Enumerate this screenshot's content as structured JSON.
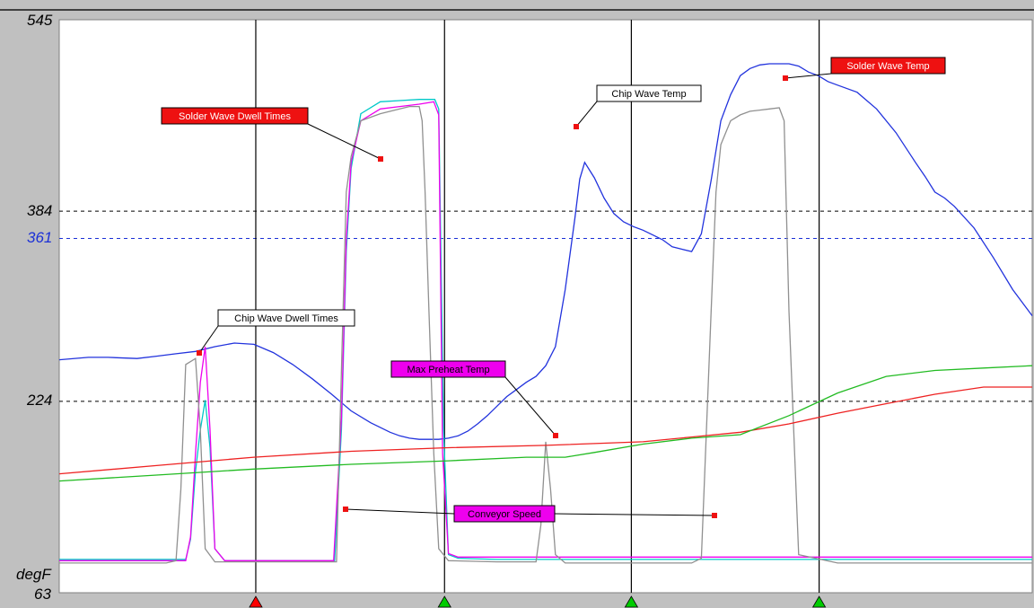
{
  "chart_data": {
    "type": "line",
    "ylabel": "degF",
    "ylim": [
      63,
      545
    ],
    "y_ticks": [
      {
        "value": 545,
        "label": "545",
        "color": "#000000"
      },
      {
        "value": 384,
        "label": "384",
        "color": "#000000"
      },
      {
        "value": 361,
        "label": "361",
        "color": "#1a2fd6"
      },
      {
        "value": 224,
        "label": "224",
        "color": "#000000"
      },
      {
        "value": 63,
        "label": "63",
        "color": "#000000"
      }
    ],
    "reference_lines": [
      {
        "value": 384,
        "color": "#000000",
        "style": "dashed"
      },
      {
        "value": 361,
        "color": "#1a2fd6",
        "style": "dashed"
      },
      {
        "value": 224,
        "color": "#000000",
        "style": "dashed"
      }
    ],
    "xlim": [
      0,
      100
    ],
    "markers": [
      {
        "x": 20.2,
        "color": "#ff0000"
      },
      {
        "x": 39.6,
        "color": "#00cc00"
      },
      {
        "x": 58.8,
        "color": "#00cc00"
      },
      {
        "x": 78.1,
        "color": "#00cc00"
      }
    ],
    "series": [
      {
        "color": "#2233dd",
        "x": [
          0,
          3,
          5,
          8,
          10,
          12,
          14,
          16,
          18,
          20,
          22,
          24,
          26,
          28,
          30,
          32,
          34,
          35,
          36,
          37,
          38,
          39,
          40,
          41,
          42,
          43,
          44,
          45,
          46,
          47,
          48,
          49,
          50,
          51,
          52,
          53,
          53.5,
          54,
          55,
          56,
          57,
          58,
          59,
          60,
          61,
          62,
          63,
          64,
          65,
          66,
          67,
          68,
          69,
          70,
          71,
          72,
          73,
          74,
          75,
          76,
          77,
          78,
          79,
          80,
          82,
          84,
          86,
          88,
          89,
          90,
          91,
          92,
          94,
          96,
          98,
          100
        ],
        "y": [
          259,
          261,
          261,
          260,
          262,
          264,
          266,
          270,
          273,
          272,
          265,
          255,
          243,
          230,
          216,
          206,
          198,
          195,
          193,
          192,
          192,
          192,
          193,
          195,
          199,
          205,
          212,
          220,
          228,
          234,
          240,
          245,
          254,
          270,
          318,
          378,
          411,
          425,
          412,
          395,
          382,
          375,
          371,
          368,
          364,
          360,
          354,
          352,
          350,
          365,
          410,
          460,
          482,
          498,
          504,
          507,
          508,
          508,
          508,
          506,
          501,
          498,
          493,
          490,
          484,
          470,
          450,
          425,
          413,
          400,
          395,
          388,
          370,
          345,
          318,
          296
        ]
      },
      {
        "color": "#00c8c8",
        "x": [
          0,
          13,
          13.5,
          14,
          14.5,
          15,
          15.5,
          16,
          17,
          19,
          20,
          21,
          22,
          25,
          28.3,
          29,
          29.5,
          30,
          31,
          33,
          35,
          37,
          38.6,
          39,
          39.5,
          40,
          41,
          45,
          50,
          55,
          60,
          65,
          70,
          75,
          80,
          85,
          90,
          95,
          100
        ],
        "y": [
          91,
          91,
          108,
          165,
          200,
          225,
          185,
          100,
          90,
          90,
          90,
          90,
          90,
          90,
          90,
          200,
          350,
          420,
          466,
          476,
          477,
          478,
          478,
          470,
          200,
          95,
          92,
          91,
          91,
          91,
          91,
          91,
          91,
          91,
          91,
          91,
          91,
          91,
          91
        ]
      },
      {
        "color": "#ee00ee",
        "x": [
          0,
          13,
          13.5,
          14,
          14.5,
          15,
          15.5,
          16,
          17,
          19,
          25,
          28.2,
          29,
          29.5,
          30,
          31,
          33,
          35,
          37,
          38.5,
          39,
          39.4,
          40,
          41,
          45,
          50,
          55,
          60,
          65,
          70,
          75,
          80,
          85,
          90,
          95,
          100
        ],
        "y": [
          90,
          90,
          110,
          180,
          240,
          270,
          200,
          100,
          90,
          90,
          90,
          90,
          210,
          360,
          425,
          460,
          470,
          472,
          474,
          476,
          465,
          180,
          96,
          93,
          93,
          93,
          93,
          93,
          93,
          93,
          93,
          93,
          93,
          93,
          93,
          93
        ]
      },
      {
        "color": "#909090",
        "x": [
          0,
          11,
          12,
          12.5,
          13,
          14,
          14.5,
          15,
          16,
          20,
          25,
          28.5,
          29,
          29.5,
          30,
          31,
          33,
          35,
          36,
          36.5,
          37,
          37.3,
          37.6,
          38,
          38.5,
          39,
          40,
          45,
          49,
          49.5,
          50,
          50.5,
          51,
          52,
          55,
          60,
          65,
          66,
          67,
          67.5,
          68,
          69,
          70,
          71,
          72,
          73,
          74,
          74.5,
          75,
          76,
          80,
          85,
          90,
          95,
          100
        ],
        "y": [
          88,
          88,
          90,
          150,
          255,
          260,
          200,
          100,
          89,
          89,
          89,
          89,
          250,
          400,
          430,
          460,
          466,
          470,
          472,
          472,
          472,
          460,
          400,
          300,
          180,
          100,
          90,
          89,
          89,
          120,
          190,
          150,
          95,
          88,
          88,
          88,
          88,
          92,
          300,
          400,
          440,
          460,
          465,
          468,
          469,
          470,
          471,
          460,
          300,
          95,
          88,
          88,
          88,
          88,
          88
        ]
      },
      {
        "color": "#ee2222",
        "x": [
          0,
          10,
          20,
          30,
          40,
          50,
          60,
          65,
          70,
          75,
          80,
          85,
          90,
          95,
          100
        ],
        "y": [
          163,
          170,
          177,
          182,
          185,
          187,
          190,
          194,
          198,
          205,
          214,
          222,
          230,
          236,
          236
        ]
      },
      {
        "color": "#22bb22",
        "x": [
          0,
          10,
          20,
          30,
          40,
          48,
          52,
          55,
          60,
          65,
          70,
          75,
          80,
          85,
          90,
          95,
          100
        ],
        "y": [
          157,
          162,
          167,
          171,
          174,
          177,
          177,
          181,
          188,
          193,
          196,
          212,
          231,
          245,
          250,
          252,
          254
        ]
      }
    ],
    "annotations": [
      {
        "text": "Solder Wave Dwell Times",
        "bg": "#ee1111",
        "fg": "#ffffff"
      },
      {
        "text": "Chip Wave Temp",
        "bg": "#ffffff",
        "fg": "#000000"
      },
      {
        "text": "Solder Wave Temp",
        "bg": "#ee1111",
        "fg": "#ffffff"
      },
      {
        "text": "Chip Wave Dwell Times",
        "bg": "#ffffff",
        "fg": "#000000"
      },
      {
        "text": "Max Preheat Temp",
        "bg": "#ee00ee",
        "fg": "#000000"
      },
      {
        "text": "Conveyor Speed",
        "bg": "#ee00ee",
        "fg": "#000000"
      }
    ]
  }
}
